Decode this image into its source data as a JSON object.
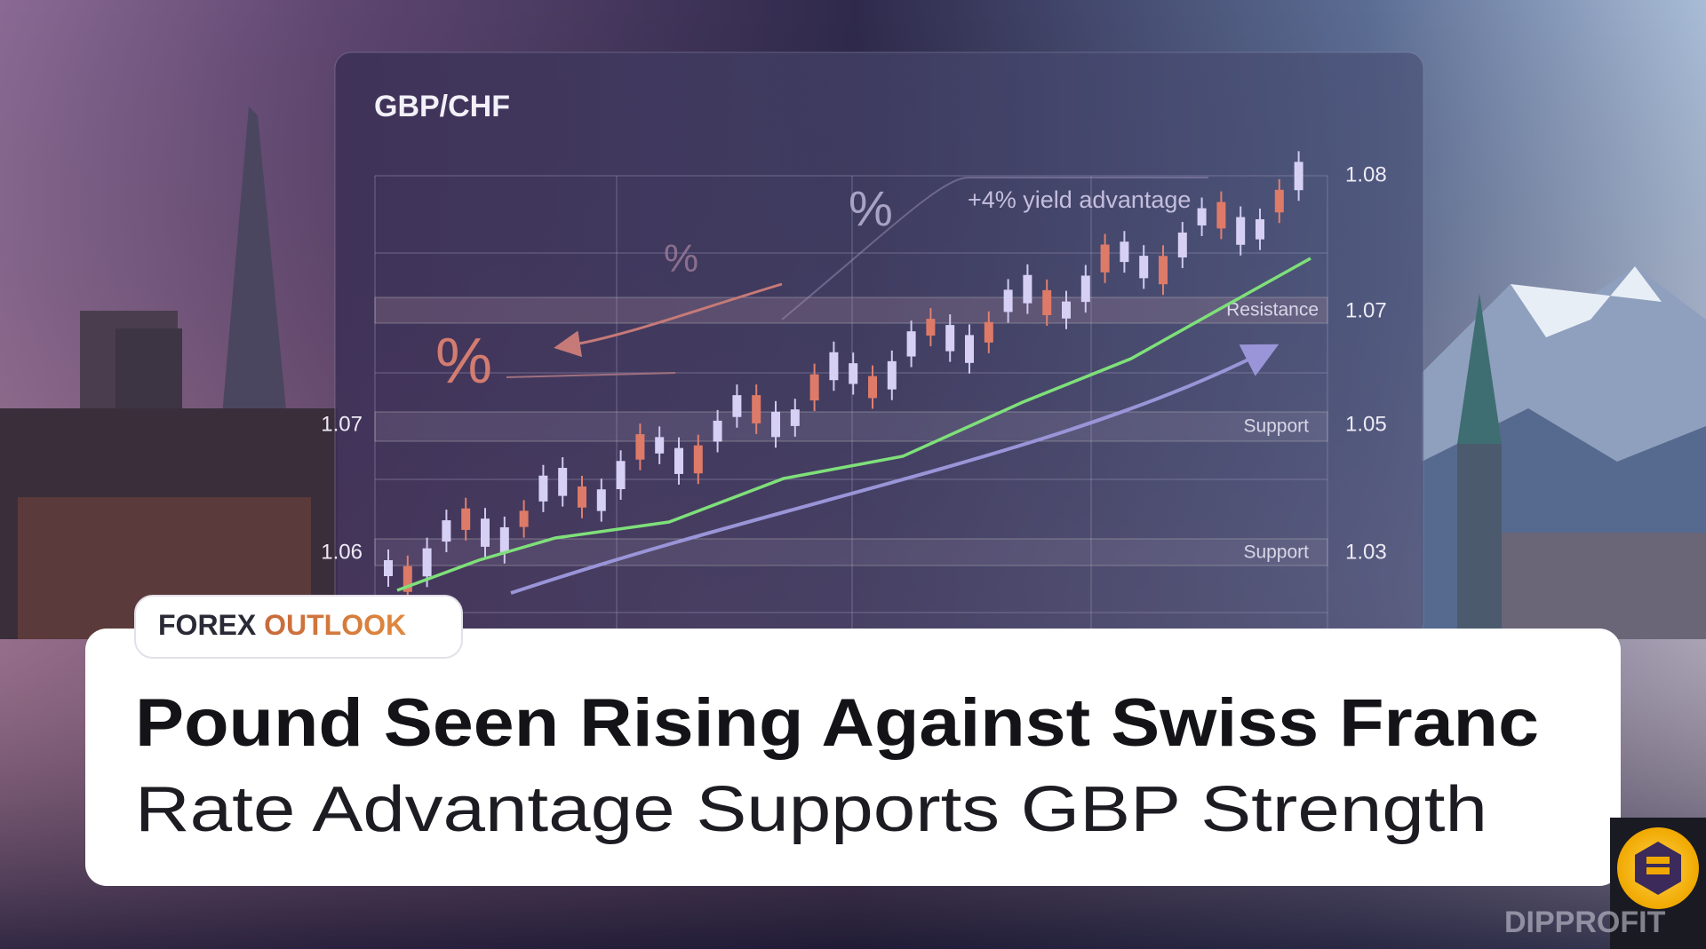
{
  "panel": {
    "title": "GBP/CHF",
    "annotation": "+4% yield advantage",
    "percent_marks": [
      "%",
      "%",
      "%"
    ],
    "levels": [
      {
        "label": "Resistance"
      },
      {
        "label": "Support"
      },
      {
        "label": "Support"
      }
    ],
    "right_axis": [
      "1.08",
      "1.07",
      "1.05",
      "1.03"
    ],
    "left_axis": [
      "1.07",
      "1.06"
    ]
  },
  "badge": {
    "word1": "FOREX",
    "word2": "OUTLOOK"
  },
  "headline": "Pound Seen Rising Against Swiss Franc",
  "subheadline": "Rate Advantage Supports GBP Strength",
  "watermark": "DIPPROFIT"
}
